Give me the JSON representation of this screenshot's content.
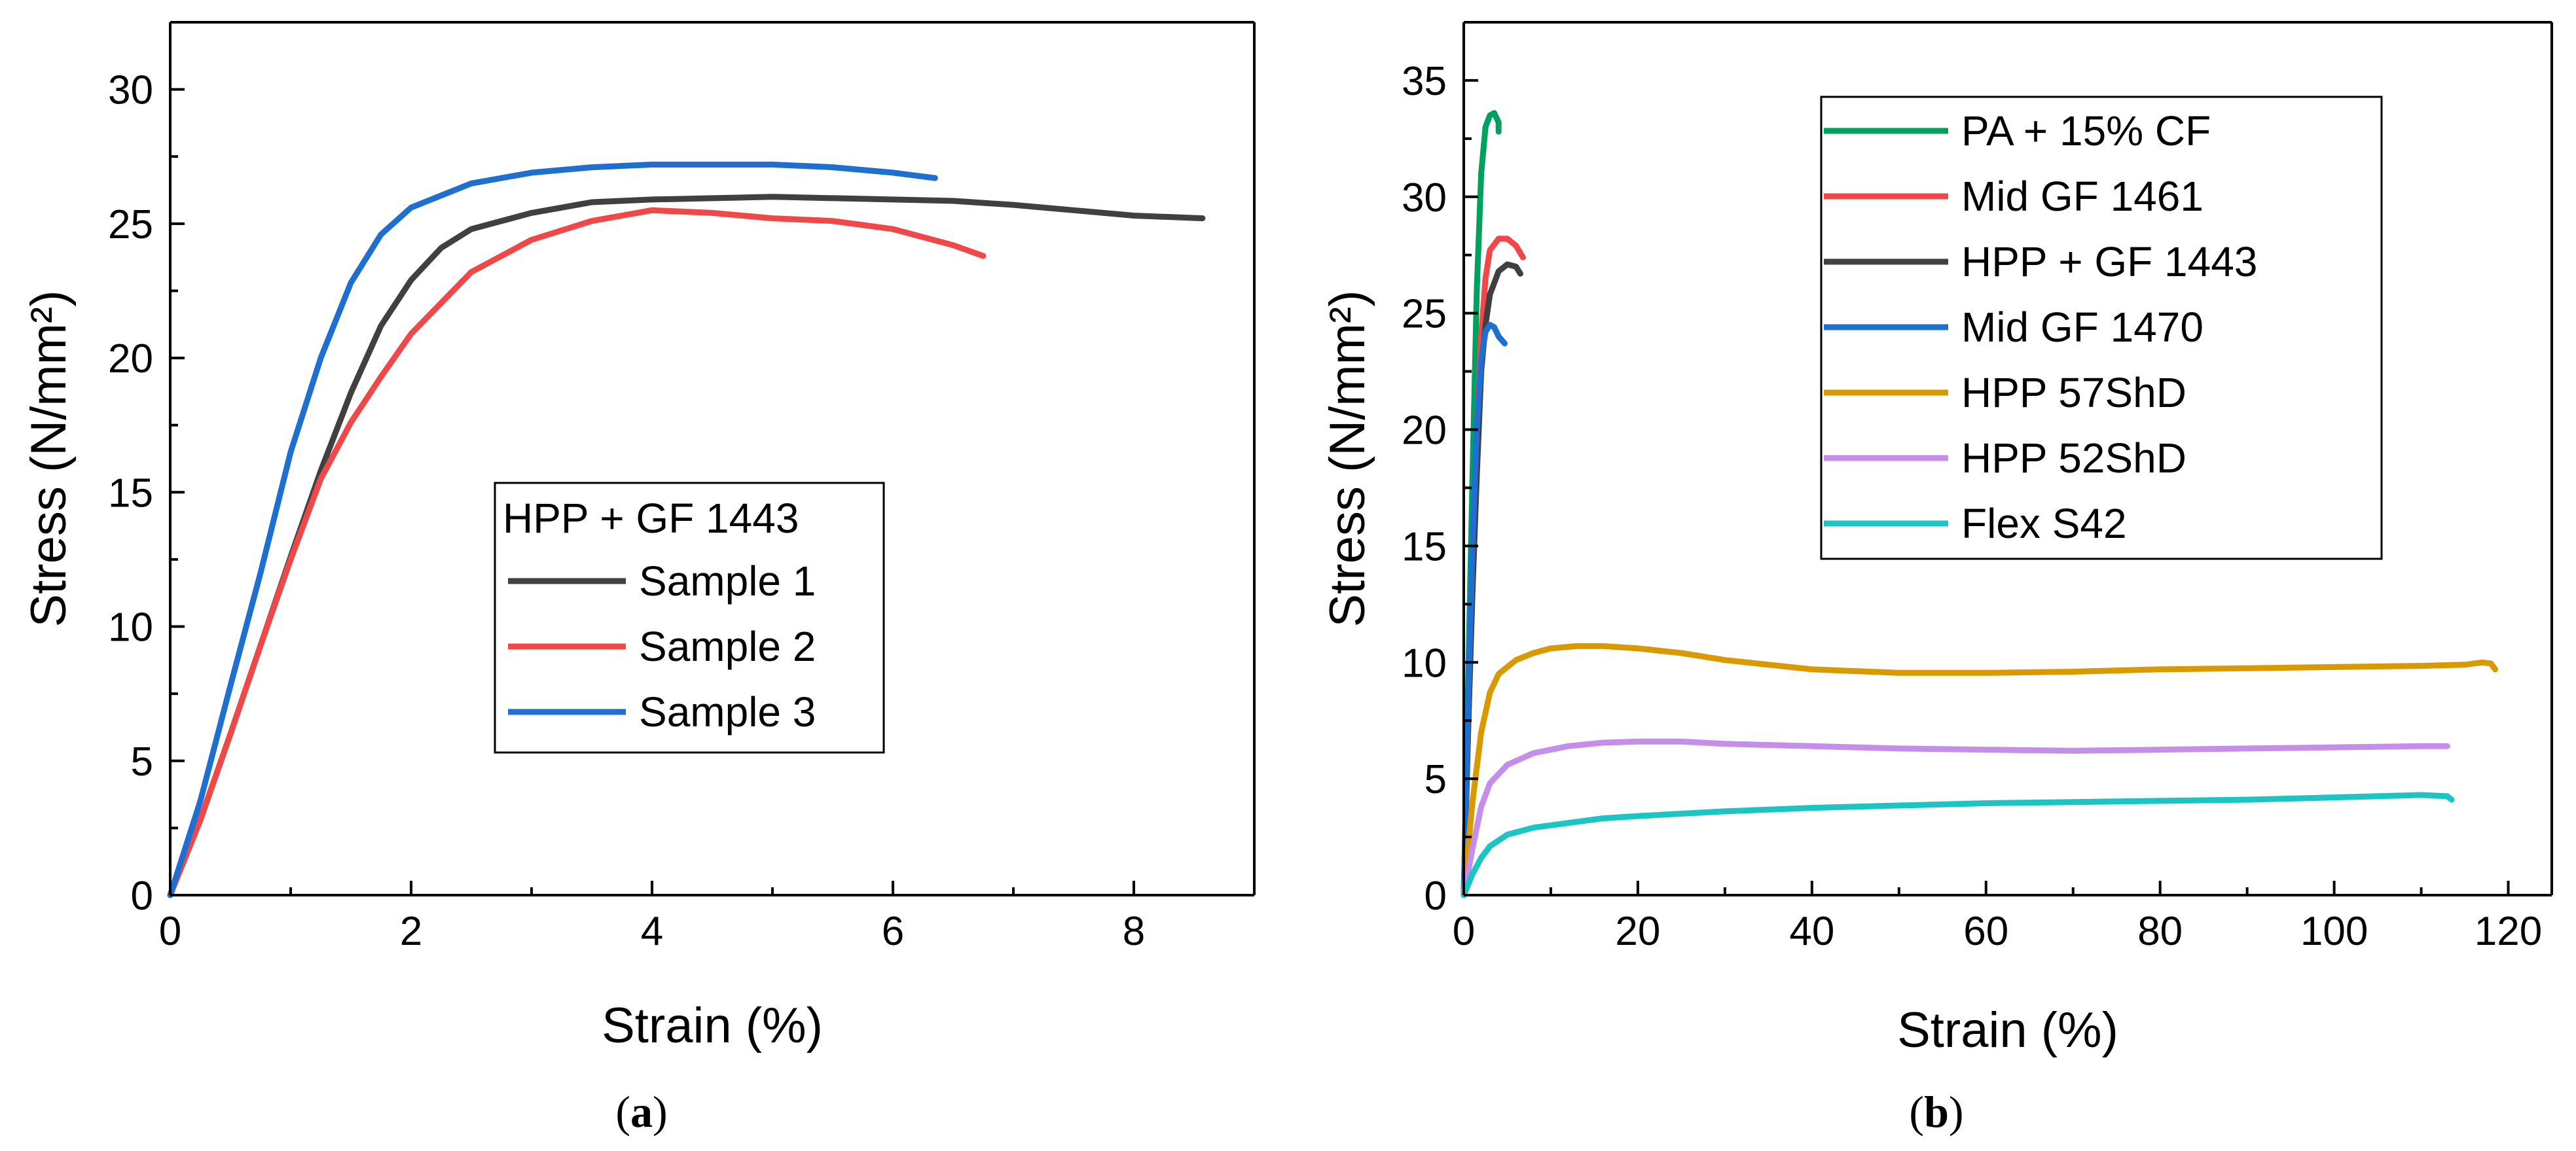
{
  "chart_data": [
    {
      "type": "line",
      "panel": "a",
      "caption": "(a)",
      "caption_parts": [
        "(",
        "a",
        ")"
      ],
      "xlabel": "Strain (%)",
      "ylabel": "Stress (N/mm²)",
      "xlim": [
        0,
        9
      ],
      "ylim": [
        0,
        32.5
      ],
      "xticks": [
        0,
        2,
        4,
        6,
        8
      ],
      "yticks": [
        0,
        5,
        10,
        15,
        20,
        25,
        30
      ],
      "grid": false,
      "legend_title": "HPP + GF 1443",
      "legend_position": "center",
      "series": [
        {
          "name": "Sample 1",
          "color": "#404040",
          "points": [
            [
              0,
              0
            ],
            [
              0.25,
              2.8
            ],
            [
              0.5,
              6
            ],
            [
              0.75,
              9.3
            ],
            [
              1.0,
              12.6
            ],
            [
              1.25,
              15.8
            ],
            [
              1.5,
              18.7
            ],
            [
              1.75,
              21.2
            ],
            [
              2.0,
              22.9
            ],
            [
              2.25,
              24.1
            ],
            [
              2.5,
              24.8
            ],
            [
              3.0,
              25.4
            ],
            [
              3.5,
              25.8
            ],
            [
              4.0,
              25.9
            ],
            [
              5.0,
              26.0
            ],
            [
              6.0,
              25.9
            ],
            [
              6.5,
              25.85
            ],
            [
              7.0,
              25.7
            ],
            [
              7.5,
              25.5
            ],
            [
              8.0,
              25.3
            ],
            [
              8.57,
              25.2
            ]
          ]
        },
        {
          "name": "Sample 2",
          "color": "#f04848",
          "points": [
            [
              0,
              0
            ],
            [
              0.25,
              2.8
            ],
            [
              0.5,
              6
            ],
            [
              0.75,
              9.3
            ],
            [
              1.0,
              12.5
            ],
            [
              1.25,
              15.5
            ],
            [
              1.5,
              17.6
            ],
            [
              1.75,
              19.3
            ],
            [
              2.0,
              20.9
            ],
            [
              2.5,
              23.2
            ],
            [
              3.0,
              24.4
            ],
            [
              3.5,
              25.1
            ],
            [
              4.0,
              25.5
            ],
            [
              4.5,
              25.4
            ],
            [
              5.0,
              25.2
            ],
            [
              5.5,
              25.1
            ],
            [
              6.0,
              24.8
            ],
            [
              6.5,
              24.2
            ],
            [
              6.75,
              23.8
            ]
          ]
        },
        {
          "name": "Sample 3",
          "color": "#1f6fd1",
          "points": [
            [
              0,
              0
            ],
            [
              0.25,
              3.5
            ],
            [
              0.5,
              7.8
            ],
            [
              0.75,
              12
            ],
            [
              1.0,
              16.5
            ],
            [
              1.25,
              20
            ],
            [
              1.5,
              22.8
            ],
            [
              1.75,
              24.6
            ],
            [
              2.0,
              25.6
            ],
            [
              2.5,
              26.5
            ],
            [
              3.0,
              26.9
            ],
            [
              3.5,
              27.1
            ],
            [
              4.0,
              27.2
            ],
            [
              4.5,
              27.2
            ],
            [
              5.0,
              27.2
            ],
            [
              5.5,
              27.1
            ],
            [
              6.0,
              26.9
            ],
            [
              6.35,
              26.7
            ]
          ]
        }
      ]
    },
    {
      "type": "line",
      "panel": "b",
      "caption": "(b)",
      "caption_parts": [
        "(",
        "b",
        ")"
      ],
      "xlabel": "Strain (%)",
      "ylabel": "Stress (N/mm²)",
      "xlim": [
        0,
        125
      ],
      "ylim": [
        0,
        37.5
      ],
      "xticks": [
        0,
        20,
        40,
        60,
        80,
        100,
        120
      ],
      "yticks": [
        0,
        5,
        10,
        15,
        20,
        25,
        30,
        35
      ],
      "grid": false,
      "legend_position": "top",
      "series": [
        {
          "name": "PA + 15% CF",
          "color": "#00a060",
          "points": [
            [
              0,
              0
            ],
            [
              0.5,
              9
            ],
            [
              1,
              18
            ],
            [
              1.5,
              26
            ],
            [
              2,
              31
            ],
            [
              2.5,
              33
            ],
            [
              3,
              33.5
            ],
            [
              3.5,
              33.6
            ],
            [
              4,
              33.2
            ],
            [
              4,
              32.8
            ]
          ]
        },
        {
          "name": "Mid GF 1461",
          "color": "#f04848",
          "points": [
            [
              0,
              0
            ],
            [
              0.5,
              7
            ],
            [
              1,
              14
            ],
            [
              1.5,
              20
            ],
            [
              2,
              24
            ],
            [
              2.5,
              26.5
            ],
            [
              3,
              27.7
            ],
            [
              4,
              28.2
            ],
            [
              5,
              28.2
            ],
            [
              6,
              27.9
            ],
            [
              6.8,
              27.4
            ]
          ]
        },
        {
          "name": "HPP + GF 1443",
          "color": "#404040",
          "points": [
            [
              0,
              0
            ],
            [
              0.5,
              7
            ],
            [
              1,
              13
            ],
            [
              1.5,
              18
            ],
            [
              2,
              22.5
            ],
            [
              2.5,
              24.5
            ],
            [
              3,
              25.8
            ],
            [
              4,
              26.8
            ],
            [
              5,
              27.1
            ],
            [
              6,
              27.0
            ],
            [
              6.5,
              26.7
            ]
          ]
        },
        {
          "name": "Mid GF 1470",
          "color": "#1f6fd1",
          "points": [
            [
              0,
              0
            ],
            [
              0.5,
              8
            ],
            [
              1,
              15
            ],
            [
              1.5,
              20
            ],
            [
              2,
              23
            ],
            [
              2.5,
              24.2
            ],
            [
              3,
              24.5
            ],
            [
              3.5,
              24.4
            ],
            [
              4,
              24.0
            ],
            [
              4.7,
              23.7
            ]
          ]
        },
        {
          "name": "HPP 57ShD",
          "color": "#d89a00",
          "points": [
            [
              0,
              0
            ],
            [
              1,
              4
            ],
            [
              2,
              7
            ],
            [
              3,
              8.7
            ],
            [
              4,
              9.5
            ],
            [
              6,
              10.1
            ],
            [
              8,
              10.4
            ],
            [
              10,
              10.6
            ],
            [
              13,
              10.7
            ],
            [
              16,
              10.7
            ],
            [
              20,
              10.6
            ],
            [
              25,
              10.4
            ],
            [
              30,
              10.1
            ],
            [
              40,
              9.7
            ],
            [
              50,
              9.55
            ],
            [
              60,
              9.55
            ],
            [
              70,
              9.6
            ],
            [
              80,
              9.7
            ],
            [
              90,
              9.75
            ],
            [
              100,
              9.8
            ],
            [
              110,
              9.85
            ],
            [
              115,
              9.9
            ],
            [
              117,
              10.0
            ],
            [
              118,
              9.95
            ],
            [
              118.5,
              9.7
            ]
          ]
        },
        {
          "name": "HPP 52ShD",
          "color": "#c58ee8",
          "points": [
            [
              0,
              0
            ],
            [
              1,
              2
            ],
            [
              2,
              3.8
            ],
            [
              3,
              4.8
            ],
            [
              5,
              5.6
            ],
            [
              8,
              6.1
            ],
            [
              12,
              6.4
            ],
            [
              16,
              6.55
            ],
            [
              20,
              6.6
            ],
            [
              25,
              6.6
            ],
            [
              30,
              6.5
            ],
            [
              40,
              6.4
            ],
            [
              50,
              6.3
            ],
            [
              60,
              6.25
            ],
            [
              70,
              6.2
            ],
            [
              80,
              6.25
            ],
            [
              90,
              6.3
            ],
            [
              100,
              6.35
            ],
            [
              110,
              6.4
            ],
            [
              113,
              6.4
            ]
          ]
        },
        {
          "name": "Flex S42",
          "color": "#1cc4c4",
          "points": [
            [
              0,
              0
            ],
            [
              1,
              0.9
            ],
            [
              2,
              1.6
            ],
            [
              3,
              2.1
            ],
            [
              5,
              2.6
            ],
            [
              8,
              2.9
            ],
            [
              12,
              3.1
            ],
            [
              16,
              3.3
            ],
            [
              20,
              3.4
            ],
            [
              30,
              3.6
            ],
            [
              40,
              3.75
            ],
            [
              50,
              3.85
            ],
            [
              60,
              3.95
            ],
            [
              70,
              4.0
            ],
            [
              80,
              4.05
            ],
            [
              90,
              4.1
            ],
            [
              100,
              4.2
            ],
            [
              110,
              4.3
            ],
            [
              113,
              4.25
            ],
            [
              113.5,
              4.1
            ]
          ]
        }
      ]
    }
  ]
}
